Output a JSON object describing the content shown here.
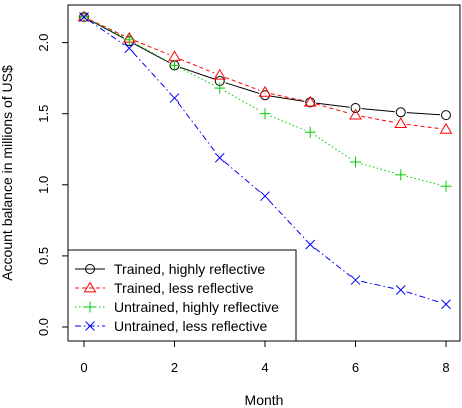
{
  "chart_data": {
    "type": "line",
    "title": "",
    "xlabel": "Month",
    "ylabel": "Account balance in millions of US$",
    "xlim": [
      0,
      8
    ],
    "ylim": [
      0,
      2.2
    ],
    "x_ticks": [
      "0",
      "2",
      "4",
      "6",
      "8"
    ],
    "y_ticks": [
      "0.0",
      "0.5",
      "1.0",
      "1.5",
      "2.0"
    ],
    "grid": false,
    "legend_position": "bottom-left",
    "x": [
      0,
      1,
      2,
      3,
      4,
      5,
      6,
      7,
      8
    ],
    "series": [
      {
        "name": "Trained, highly reflective",
        "values": [
          2.18,
          2.01,
          1.84,
          1.73,
          1.63,
          1.58,
          1.54,
          1.51,
          1.49
        ],
        "color": "#000000",
        "marker": "circle",
        "dash": "solid"
      },
      {
        "name": "Trained, less reflective",
        "values": [
          2.18,
          2.03,
          1.9,
          1.77,
          1.65,
          1.58,
          1.49,
          1.43,
          1.39
        ],
        "color": "#ff0000",
        "marker": "triangle",
        "dash": "dashed"
      },
      {
        "name": "Untrained, highly reflective",
        "values": [
          2.18,
          2.02,
          1.84,
          1.68,
          1.5,
          1.37,
          1.16,
          1.07,
          0.99
        ],
        "color": "#00cd00",
        "marker": "plus",
        "dash": "dotted"
      },
      {
        "name": "Untrained, less reflective",
        "values": [
          2.18,
          1.96,
          1.61,
          1.19,
          0.92,
          0.58,
          0.33,
          0.26,
          0.16
        ],
        "color": "#0000ff",
        "marker": "cross",
        "dash": "dashdot"
      }
    ]
  }
}
